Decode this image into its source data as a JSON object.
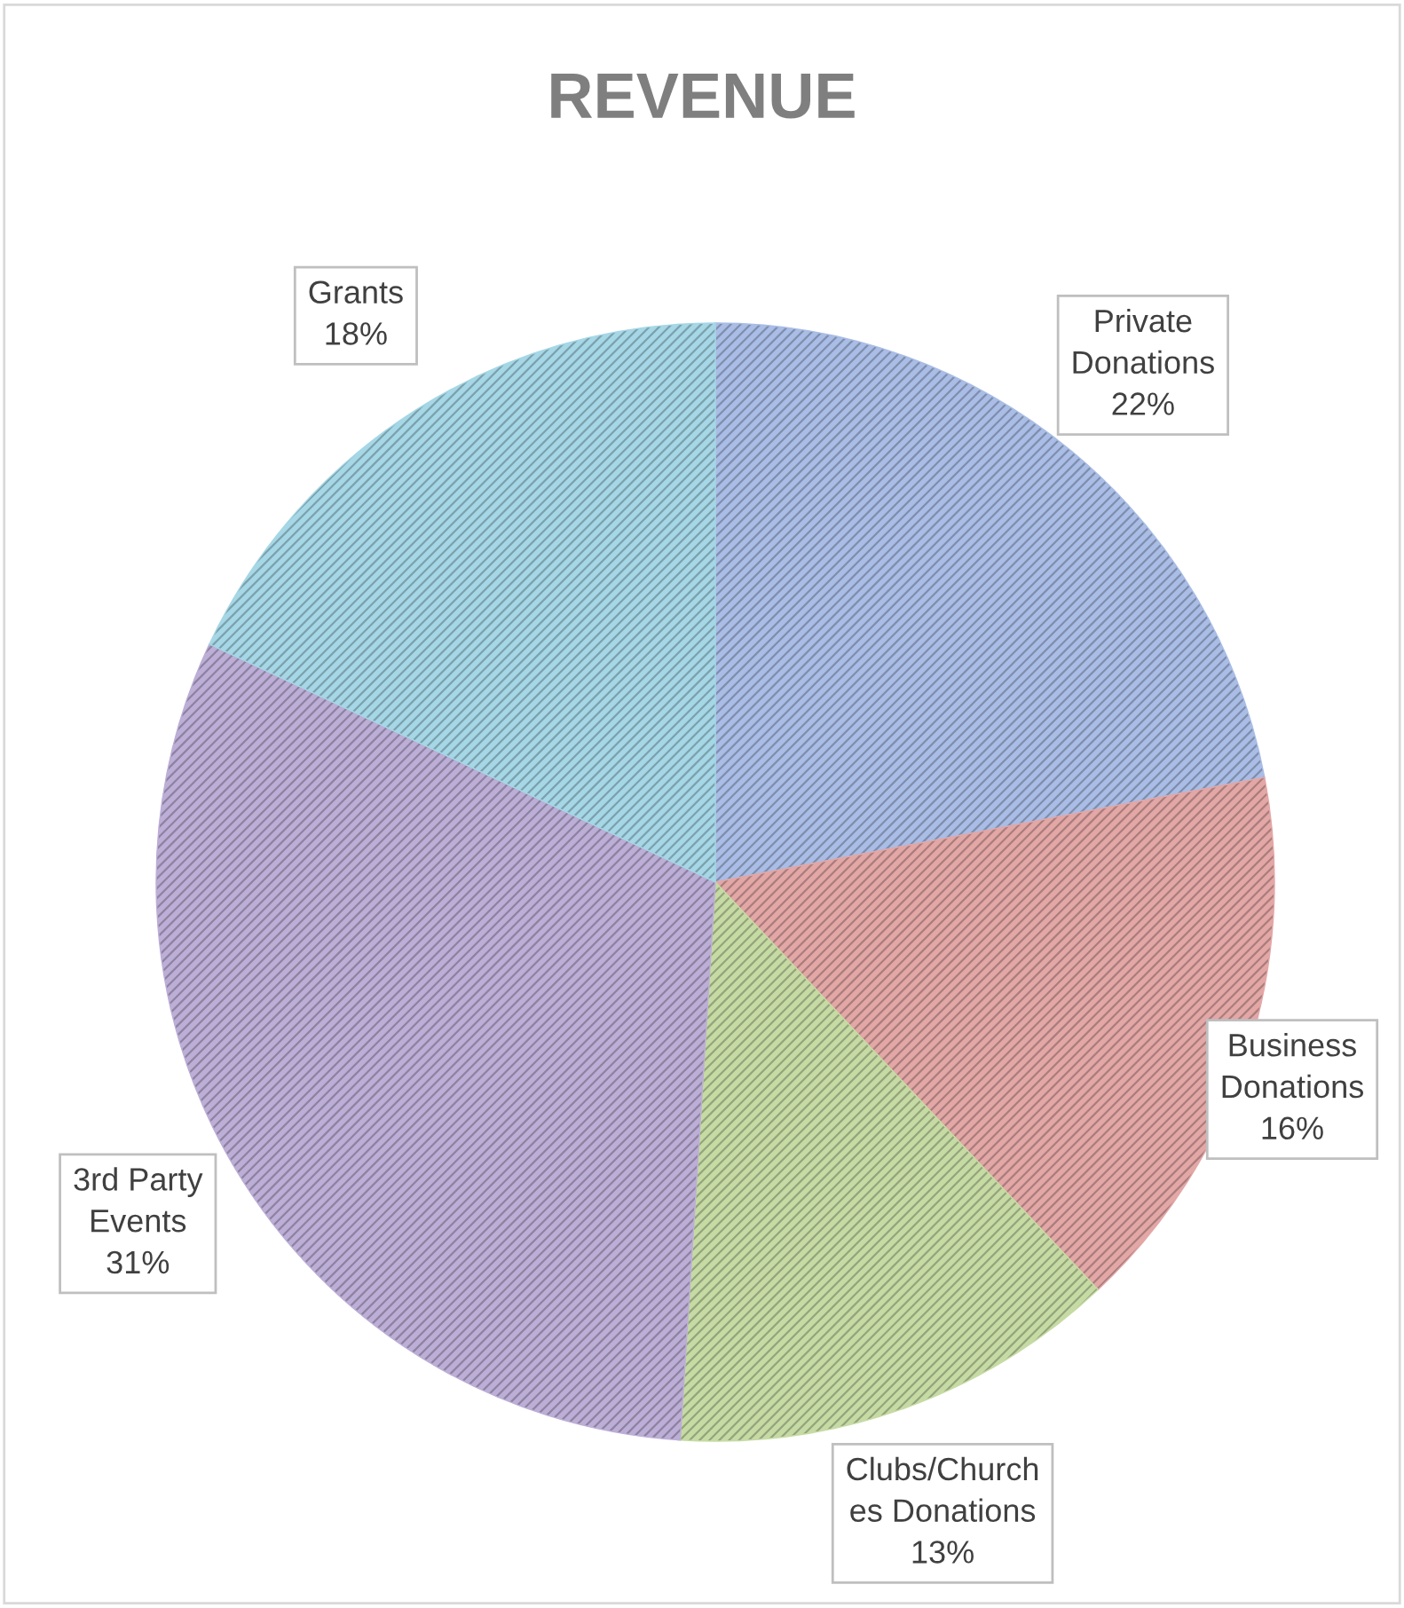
{
  "chart_data": {
    "type": "pie",
    "title": "REVENUE",
    "categories": [
      "Private\nDonations",
      "Business\nDonations",
      "Clubs/Church\nes Donations",
      "3rd Party\nEvents",
      "Grants"
    ],
    "values": [
      22,
      16,
      13,
      31,
      18
    ],
    "value_labels": [
      "22%",
      "16%",
      "13%",
      "31%",
      "18%"
    ],
    "colors": [
      "#a9bde6",
      "#e3a7a6",
      "#c6dba4",
      "#bcaed6",
      "#a5d7e6"
    ],
    "legend": false
  }
}
